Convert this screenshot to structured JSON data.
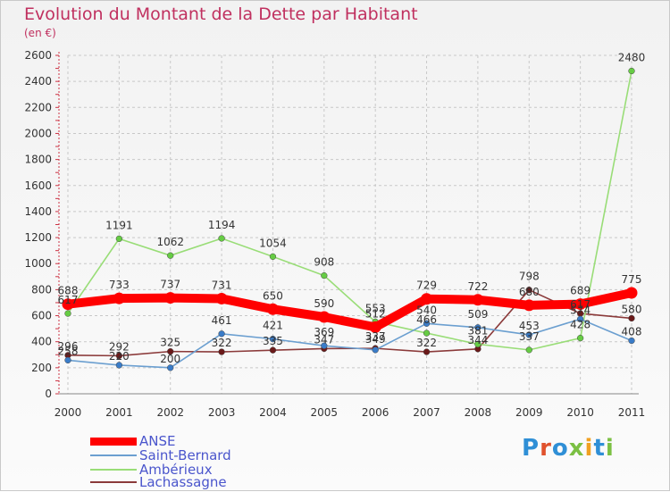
{
  "title": "Evolution du Montant de la Dette par Habitant",
  "unit": "(en €)",
  "logo_text": "Proxiti",
  "logo_colors": [
    "#2f8fd6",
    "#e0522d",
    "#2f8fd6",
    "#7bc043",
    "#f0a020",
    "#2f8fd6",
    "#7bc043"
  ],
  "chart_data": {
    "type": "line",
    "title": "Evolution du Montant de la Dette par Habitant",
    "subtitle": "(en €)",
    "x": [
      "2000",
      "2001",
      "2002",
      "2003",
      "2004",
      "2005",
      "2006",
      "2007",
      "2008",
      "2009",
      "2010",
      "2011"
    ],
    "ylim": [
      0,
      2600
    ],
    "yticks": [
      0,
      200,
      400,
      600,
      800,
      1000,
      1200,
      1400,
      1600,
      1800,
      2000,
      2200,
      2400,
      2600
    ],
    "grid": true,
    "legend_position": "bottom-left",
    "series": [
      {
        "name": "ANSE",
        "color": "#ff0000",
        "point_color": "#ff0000",
        "values": [
          688,
          733,
          737,
          731,
          650,
          590,
          512,
          729,
          722,
          680,
          689,
          775
        ],
        "labels": [
          "688",
          "733",
          "737",
          "731",
          "650",
          "590",
          "512",
          "729",
          "722",
          "680",
          "689",
          "775"
        ]
      },
      {
        "name": "Saint-Bernard",
        "color": "#6b9fd0",
        "point_color": "#3a7cc8",
        "values": [
          258,
          220,
          200,
          461,
          421,
          369,
          337,
          540,
          509,
          453,
          574,
          408
        ],
        "labels": [
          "258",
          "220",
          "200",
          "461",
          "421",
          "369",
          "337",
          "540",
          "509",
          "453",
          "574",
          "408"
        ]
      },
      {
        "name": "Ambérieux",
        "color": "#99dd77",
        "point_color": "#66cc44",
        "values": [
          617,
          1191,
          1062,
          1194,
          1054,
          908,
          553,
          466,
          381,
          337,
          428,
          2480
        ],
        "labels": [
          "617",
          "1191",
          "1062",
          "1194",
          "1054",
          "908",
          "553",
          "466",
          "381",
          "337",
          "428",
          "2480"
        ]
      },
      {
        "name": "Lachassagne",
        "color": "#8b3a3a",
        "point_color": "#6b1a1a",
        "values": [
          296,
          292,
          325,
          322,
          335,
          347,
          349,
          322,
          344,
          798,
          617,
          580
        ],
        "labels": [
          "296",
          "292",
          "325",
          "322",
          "335",
          "347",
          "349",
          "322",
          "344",
          "798",
          "617",
          "580"
        ]
      }
    ]
  }
}
